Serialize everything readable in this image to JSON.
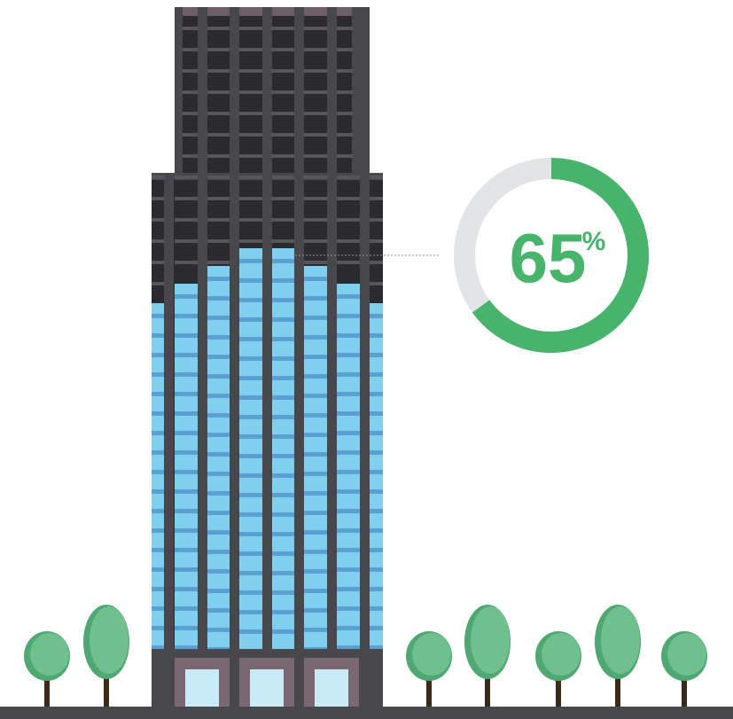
{
  "progress": {
    "value": 65,
    "unit": "%",
    "display_number": "65",
    "display_unit": "%"
  },
  "colors": {
    "background": "#ffffff",
    "ground": "#48474c",
    "tower_dark": "#2b2b2f",
    "tower_frame": "#48474c",
    "tower_top_cap": "#6b5e66",
    "window_blue": "#7fd0ee",
    "window_blue_shadow": "#5aaee0",
    "floor_band": "#5b9fd3",
    "base_pink": "#7a6870",
    "door_glass": "#c9ebf7",
    "gauge_fill": "#47b36b",
    "gauge_track": "#e3e4e6",
    "tree_canopy": "#6fc08d",
    "tree_canopy_dark": "#4fa772",
    "tree_trunk": "#3b2a1a",
    "leader_line": "#9a9a9a"
  },
  "icons": {
    "building": "skyscraper-icon",
    "gauge": "donut-progress-icon",
    "tree": "tree-icon"
  }
}
